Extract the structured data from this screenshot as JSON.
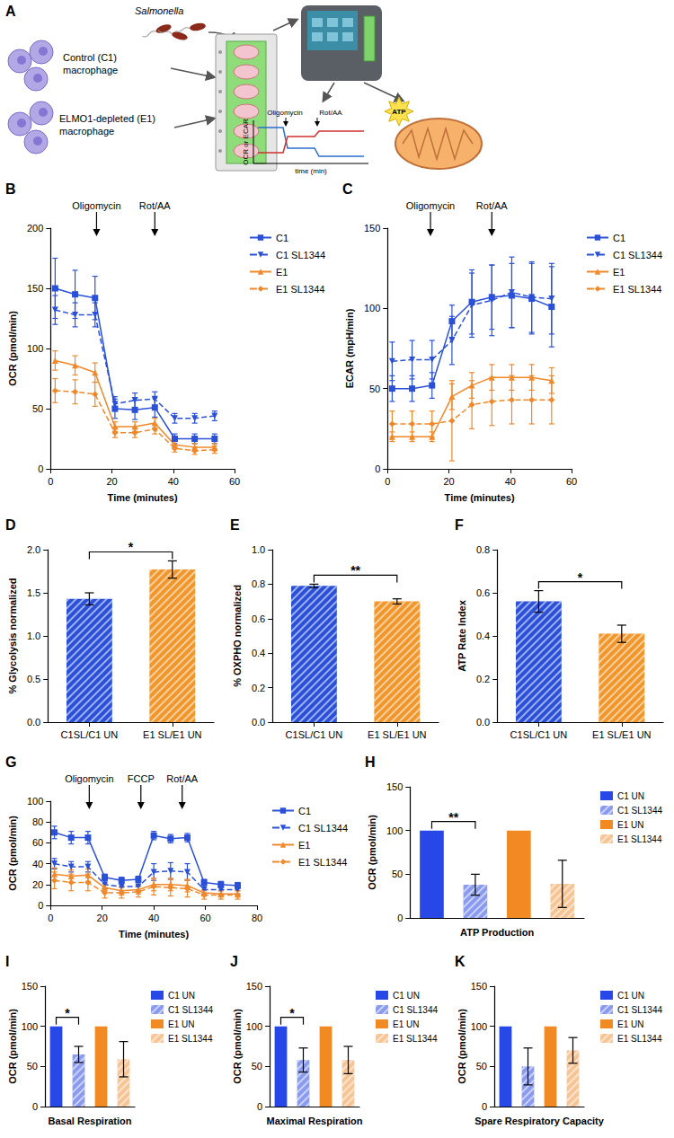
{
  "schematic": {
    "panel": "A",
    "labels": {
      "bacteria": "Salmonella",
      "control": "Control (C1) macrophage",
      "elmo": "ELMO1-depleted (E1) macrophage"
    },
    "mini_plot": {
      "annotations": [
        "Oligomycin",
        "Rot/AA"
      ],
      "y_label": "OCR or ECAR",
      "x_label": "time (min)"
    },
    "atp": "ATP"
  },
  "chart_data": [
    {
      "panel": "B",
      "type": "line",
      "x_label": "Time (minutes)",
      "y_label": "OCR (pmol/min)",
      "xlim": [
        0,
        60
      ],
      "xticks": [
        0,
        20,
        40,
        60
      ],
      "ylim": [
        0,
        200
      ],
      "yticks": [
        0,
        50,
        100,
        150,
        200
      ],
      "grid": false,
      "legend": "right",
      "annotations": [
        {
          "text": "Oligomycin",
          "x": 15
        },
        {
          "text": "Rot/AA",
          "x": 34
        }
      ],
      "x": [
        1.5,
        8,
        14.5,
        21,
        27.5,
        34,
        40.5,
        47,
        53.5
      ],
      "series": [
        {
          "name": "C1",
          "color": "#2a50d8",
          "marker": "square",
          "line_style": "solid",
          "values": [
            150,
            145,
            142,
            50,
            49,
            51,
            25,
            25,
            25
          ],
          "errors": [
            25,
            20,
            18,
            8,
            8,
            8,
            4,
            4,
            4
          ]
        },
        {
          "name": "C1 SL1344",
          "color": "#2a50d8",
          "marker": "triangle-down",
          "line_style": "dashed",
          "values": [
            132,
            128,
            128,
            54,
            57,
            58,
            42,
            42,
            44
          ],
          "errors": [
            12,
            10,
            10,
            6,
            6,
            6,
            4,
            4,
            4
          ]
        },
        {
          "name": "E1",
          "color": "#f0882a",
          "marker": "triangle",
          "line_style": "solid",
          "values": [
            90,
            86,
            80,
            35,
            35,
            38,
            20,
            18,
            18
          ],
          "errors": [
            8,
            8,
            8,
            4,
            4,
            4,
            3,
            3,
            3
          ]
        },
        {
          "name": "E1 SL1344",
          "color": "#f0882a",
          "marker": "diamond",
          "line_style": "dashed",
          "values": [
            65,
            64,
            62,
            30,
            30,
            33,
            17,
            15,
            16
          ],
          "errors": [
            10,
            10,
            10,
            4,
            4,
            4,
            3,
            3,
            3
          ]
        }
      ]
    },
    {
      "panel": "C",
      "type": "line",
      "x_label": "Time (minutes)",
      "y_label": "ECAR (mpH/min)",
      "xlim": [
        0,
        60
      ],
      "xticks": [
        0,
        20,
        40,
        60
      ],
      "ylim": [
        0,
        150
      ],
      "yticks": [
        0,
        50,
        100,
        150
      ],
      "grid": false,
      "legend": "right",
      "annotations": [
        {
          "text": "Oligomycin",
          "x": 14
        },
        {
          "text": "Rot/AA",
          "x": 34
        }
      ],
      "x": [
        1.5,
        8,
        14.5,
        21,
        27.5,
        34,
        40.5,
        47,
        53.5
      ],
      "series": [
        {
          "name": "C1",
          "color": "#2a50d8",
          "marker": "square",
          "line_style": "solid",
          "values": [
            50,
            50,
            52,
            92,
            104,
            107,
            108,
            106,
            101
          ],
          "errors": [
            8,
            8,
            8,
            10,
            20,
            20,
            20,
            22,
            25
          ]
        },
        {
          "name": "C1 SL1344",
          "color": "#2a50d8",
          "marker": "triangle-down",
          "line_style": "dashed",
          "values": [
            67,
            68,
            68,
            80,
            102,
            105,
            110,
            107,
            106
          ],
          "errors": [
            12,
            12,
            12,
            15,
            20,
            22,
            22,
            22,
            22
          ]
        },
        {
          "name": "E1",
          "color": "#f0882a",
          "marker": "triangle",
          "line_style": "solid",
          "values": [
            20,
            20,
            20,
            45,
            52,
            57,
            57,
            57,
            55
          ],
          "errors": [
            3,
            3,
            3,
            8,
            8,
            8,
            8,
            8,
            8
          ]
        },
        {
          "name": "E1 SL1344",
          "color": "#f0882a",
          "marker": "diamond",
          "line_style": "dashed",
          "values": [
            28,
            28,
            28,
            30,
            40,
            42,
            43,
            43,
            43
          ],
          "errors": [
            8,
            8,
            8,
            25,
            15,
            15,
            15,
            15,
            15
          ]
        }
      ]
    },
    {
      "panel": "D",
      "type": "bar",
      "y_label": "% Glycolysis normalized",
      "categories": [
        "C1SL/C1 UN",
        "E1 SL/E1 UN"
      ],
      "values": [
        1.43,
        1.77
      ],
      "errors": [
        0.07,
        0.1
      ],
      "colors": [
        "#2a50d8",
        "#f0962a"
      ],
      "ylim": [
        0,
        2
      ],
      "yticks": [
        {
          "value": 0,
          "label": "0.0"
        },
        0.5,
        {
          "value": 1,
          "label": "1.0"
        },
        1.5,
        {
          "value": 2,
          "label": "2.0"
        }
      ],
      "grid": false,
      "significance": [
        {
          "from": 0,
          "to": 1,
          "label": "*"
        }
      ]
    },
    {
      "panel": "E",
      "type": "bar",
      "y_label": "% OXPHO normalized",
      "categories": [
        "C1SL/C1 UN",
        "E1 SL/E1 UN"
      ],
      "values": [
        0.79,
        0.7
      ],
      "errors": [
        0.01,
        0.015
      ],
      "colors": [
        "#2a50d8",
        "#f0962a"
      ],
      "ylim": [
        0,
        1
      ],
      "yticks": [
        {
          "value": 0,
          "label": "0.0"
        },
        0.2,
        0.4,
        0.6,
        0.8,
        {
          "value": 1,
          "label": "1.0"
        }
      ],
      "grid": false,
      "significance": [
        {
          "from": 0,
          "to": 1,
          "label": "**"
        }
      ]
    },
    {
      "panel": "F",
      "type": "bar",
      "y_label": "ATP Rate Index",
      "categories": [
        "C1SL/C1 UN",
        "E1 SL/E1 UN"
      ],
      "values": [
        0.56,
        0.41
      ],
      "errors": [
        0.05,
        0.04
      ],
      "colors": [
        "#2a50d8",
        "#f0962a"
      ],
      "ylim": [
        0,
        0.8
      ],
      "yticks": [
        {
          "value": 0,
          "label": "0.0"
        },
        0.2,
        0.4,
        0.6,
        0.8
      ],
      "grid": false,
      "significance": [
        {
          "from": 0,
          "to": 1,
          "label": "*"
        }
      ]
    },
    {
      "panel": "G",
      "type": "line",
      "x_label": "Time (minutes)",
      "y_label": "OCR (pmol/min)",
      "xlim": [
        0,
        80
      ],
      "xticks": [
        0,
        20,
        40,
        60,
        80
      ],
      "ylim": [
        0,
        100
      ],
      "yticks": [
        0,
        20,
        40,
        60,
        80,
        100
      ],
      "grid": false,
      "legend": "right",
      "annotations": [
        {
          "text": "Oligomycin",
          "x": 15
        },
        {
          "text": "FCCP",
          "x": 35
        },
        {
          "text": "Rot/AA",
          "x": 51
        }
      ],
      "x": [
        1.5,
        8,
        14.5,
        21,
        27.5,
        34,
        40,
        46.5,
        53,
        59.5,
        66,
        72.5
      ],
      "series": [
        {
          "name": "C1",
          "color": "#2a50d8",
          "marker": "square",
          "line_style": "solid",
          "values": [
            70,
            65,
            65,
            27,
            24,
            25,
            67,
            64,
            65,
            22,
            20,
            19
          ],
          "errors": [
            6,
            6,
            6,
            3,
            3,
            3,
            4,
            4,
            4,
            3,
            3,
            3
          ]
        },
        {
          "name": "C1 SL1344",
          "color": "#2a50d8",
          "marker": "triangle-down",
          "line_style": "dashed",
          "values": [
            40,
            37,
            37,
            20,
            18,
            18,
            32,
            33,
            32,
            15,
            15,
            15
          ],
          "errors": [
            5,
            5,
            5,
            4,
            4,
            4,
            8,
            8,
            8,
            4,
            4,
            4
          ]
        },
        {
          "name": "E1",
          "color": "#f0882a",
          "marker": "triangle",
          "line_style": "solid",
          "values": [
            30,
            28,
            29,
            17,
            14,
            15,
            20,
            20,
            19,
            12,
            11,
            11
          ],
          "errors": [
            6,
            6,
            6,
            4,
            4,
            4,
            6,
            6,
            6,
            3,
            3,
            3
          ]
        },
        {
          "name": "E1 SL1344",
          "color": "#f0882a",
          "marker": "diamond",
          "line_style": "dashed",
          "values": [
            24,
            22,
            22,
            12,
            12,
            13,
            18,
            17,
            16,
            10,
            10,
            10
          ],
          "errors": [
            8,
            8,
            8,
            5,
            5,
            5,
            8,
            8,
            8,
            4,
            4,
            4
          ]
        }
      ]
    },
    {
      "panel": "H",
      "type": "bar",
      "x_label": "ATP Production",
      "y_label": "OCR (pmol/min)",
      "categories": [
        "C1 UN",
        "C1 SL1344",
        "E1 UN",
        "E1 SL1344"
      ],
      "values": [
        100,
        38,
        100,
        39
      ],
      "errors": [
        0,
        12,
        0,
        27
      ],
      "colors": [
        "#2747e6",
        "#8a9bef",
        "#f28a24",
        "#f7c494"
      ],
      "ylim": [
        0,
        150
      ],
      "yticks": [
        0,
        50,
        100,
        150
      ],
      "grid": false,
      "legend": "right",
      "tick_labels": "y",
      "significance": [
        {
          "from": 0,
          "to": 1,
          "label": "**"
        }
      ]
    },
    {
      "panel": "I",
      "type": "bar",
      "x_label": "Basal Respiration",
      "y_label": "OCR (pmol/min)",
      "categories": [
        "C1 UN",
        "C1 SL1344",
        "E1 UN",
        "E1 SL1344"
      ],
      "values": [
        100,
        65,
        100,
        59
      ],
      "errors": [
        0,
        10,
        0,
        22
      ],
      "colors": [
        "#2747e6",
        "#8a9bef",
        "#f28a24",
        "#f7c494"
      ],
      "ylim": [
        0,
        150
      ],
      "yticks": [
        0,
        50,
        100,
        150
      ],
      "grid": false,
      "legend": "right",
      "tick_labels": "y",
      "significance": [
        {
          "from": 0,
          "to": 1,
          "label": "*"
        }
      ]
    },
    {
      "panel": "J",
      "type": "bar",
      "x_label": "Maximal Respiration",
      "y_label": "OCR (pmol/min)",
      "categories": [
        "C1 UN",
        "C1 SL1344",
        "E1 UN",
        "E1 SL1344"
      ],
      "values": [
        100,
        58,
        100,
        58
      ],
      "errors": [
        0,
        15,
        0,
        17
      ],
      "colors": [
        "#2747e6",
        "#8a9bef",
        "#f28a24",
        "#f7c494"
      ],
      "ylim": [
        0,
        150
      ],
      "yticks": [
        0,
        50,
        100,
        150
      ],
      "grid": false,
      "legend": "right",
      "tick_labels": "y",
      "significance": [
        {
          "from": 0,
          "to": 1,
          "label": "*"
        }
      ]
    },
    {
      "panel": "K",
      "type": "bar",
      "x_label": "Spare Respiratory Capacity",
      "y_label": "OCR (pmol/min)",
      "categories": [
        "C1 UN",
        "C1 SL1344",
        "E1 UN",
        "E1 SL1344"
      ],
      "values": [
        100,
        50,
        100,
        70
      ],
      "errors": [
        0,
        23,
        0,
        16
      ],
      "colors": [
        "#2747e6",
        "#8a9bef",
        "#f28a24",
        "#f7c494"
      ],
      "ylim": [
        0,
        150
      ],
      "yticks": [
        0,
        50,
        100,
        150
      ],
      "grid": false,
      "legend": "right",
      "tick_labels": "y"
    }
  ]
}
